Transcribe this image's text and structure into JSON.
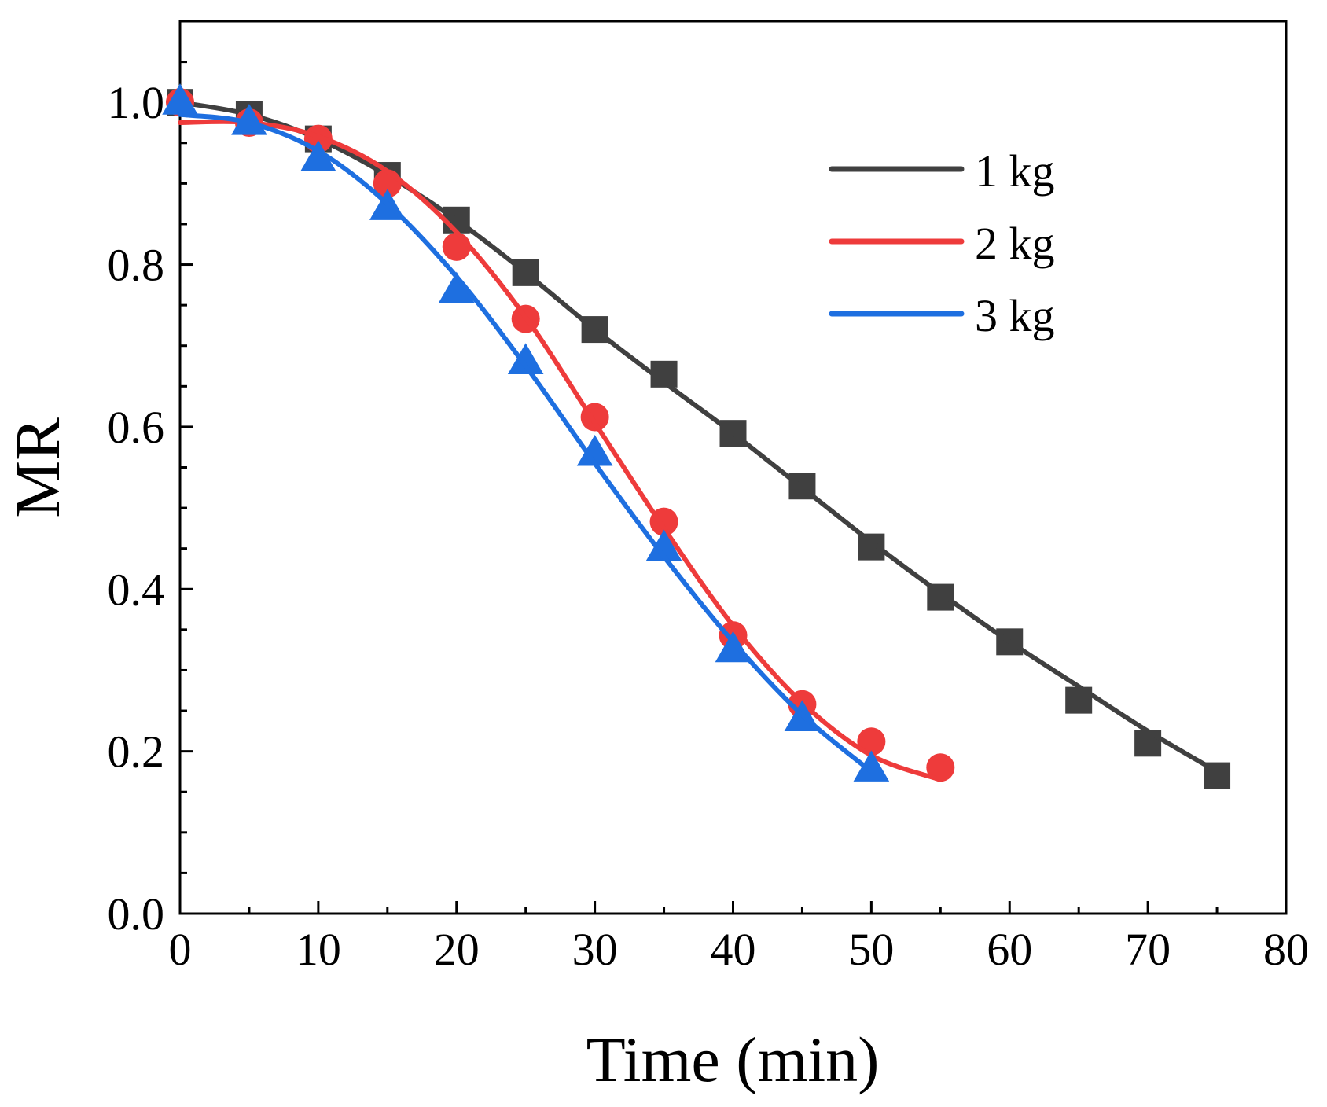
{
  "chart_data": {
    "type": "line",
    "title": "",
    "xlabel": "Time (min)",
    "ylabel": "MR",
    "xlim": [
      0,
      80
    ],
    "ylim": [
      0,
      1.1
    ],
    "xticks": [
      0,
      10,
      20,
      30,
      40,
      50,
      60,
      70,
      80
    ],
    "xtick_labels": [
      "0",
      "10",
      "20",
      "30",
      "40",
      "50",
      "60",
      "70",
      "80"
    ],
    "yticks": [
      0.0,
      0.2,
      0.4,
      0.6,
      0.8,
      1.0
    ],
    "ytick_labels": [
      "0.0",
      "0.2",
      "0.4",
      "0.6",
      "0.8",
      "1.0"
    ],
    "grid": false,
    "legend_position": "top-right",
    "series": [
      {
        "name": "1 kg",
        "color": "#404040",
        "marker": "square",
        "x": [
          0,
          5,
          10,
          15,
          20,
          25,
          30,
          35,
          40,
          45,
          50,
          55,
          60,
          65,
          70,
          75
        ],
        "y": [
          1.0,
          0.985,
          0.955,
          0.91,
          0.855,
          0.79,
          0.72,
          0.665,
          0.592,
          0.527,
          0.452,
          0.39,
          0.335,
          0.263,
          0.21,
          0.17
        ],
        "fit": [
          [
            0,
            1.0
          ],
          [
            5,
            0.985
          ],
          [
            10,
            0.955
          ],
          [
            15,
            0.91
          ],
          [
            20,
            0.855
          ],
          [
            25,
            0.79
          ],
          [
            30,
            0.72
          ],
          [
            35,
            0.655
          ],
          [
            40,
            0.592
          ],
          [
            45,
            0.525
          ],
          [
            50,
            0.458
          ],
          [
            55,
            0.395
          ],
          [
            60,
            0.335
          ],
          [
            65,
            0.28
          ],
          [
            70,
            0.225
          ],
          [
            75,
            0.175
          ]
        ]
      },
      {
        "name": "2 kg",
        "color": "#ee3b3b",
        "marker": "circle",
        "x": [
          0,
          5,
          10,
          15,
          20,
          25,
          30,
          35,
          40,
          45,
          50,
          55
        ],
        "y": [
          1.0,
          0.975,
          0.955,
          0.9,
          0.822,
          0.733,
          0.612,
          0.483,
          0.343,
          0.258,
          0.212,
          0.18
        ],
        "fit": [
          [
            0,
            0.975
          ],
          [
            5,
            0.975
          ],
          [
            10,
            0.958
          ],
          [
            15,
            0.915
          ],
          [
            20,
            0.84
          ],
          [
            25,
            0.735
          ],
          [
            30,
            0.605
          ],
          [
            35,
            0.475
          ],
          [
            40,
            0.355
          ],
          [
            45,
            0.26
          ],
          [
            50,
            0.195
          ],
          [
            55,
            0.165
          ]
        ]
      },
      {
        "name": "3 kg",
        "color": "#1e6fe0",
        "marker": "triangle",
        "x": [
          0,
          5,
          10,
          15,
          20,
          25,
          30,
          35,
          40,
          45,
          50
        ],
        "y": [
          1.0,
          0.975,
          0.93,
          0.87,
          0.768,
          0.68,
          0.567,
          0.45,
          0.325,
          0.24,
          0.178
        ],
        "fit": [
          [
            0,
            0.985
          ],
          [
            5,
            0.975
          ],
          [
            10,
            0.94
          ],
          [
            15,
            0.875
          ],
          [
            20,
            0.785
          ],
          [
            25,
            0.675
          ],
          [
            30,
            0.555
          ],
          [
            35,
            0.44
          ],
          [
            40,
            0.335
          ],
          [
            45,
            0.245
          ],
          [
            50,
            0.175
          ]
        ]
      }
    ]
  }
}
